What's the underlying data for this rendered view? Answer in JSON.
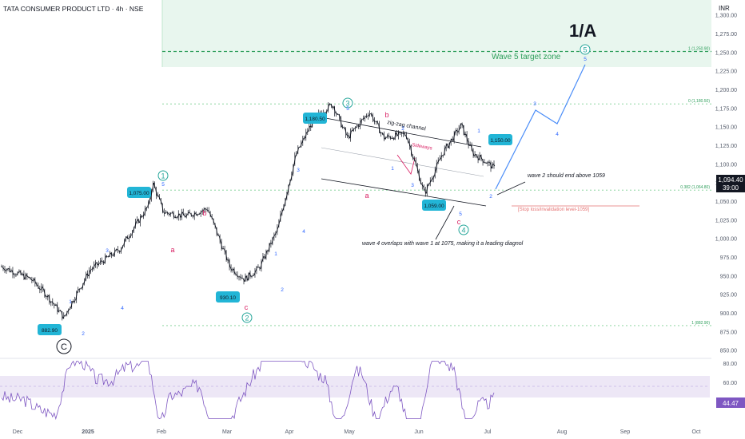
{
  "header": {
    "symbol": "TATA CONSUMER PRODUCT LTD · 4h · NSE",
    "big_label": "1/A",
    "currency": "INR"
  },
  "colors": {
    "candle": "#131722",
    "price_axis_text": "#555c6b",
    "target_zone_fill": "#e8f6ee",
    "target_line": "#2e9e5b",
    "fib_line": "#7ccf93",
    "elliott_teal": "#26a69a",
    "wave_blue": "#2962ff",
    "wave_red": "#d81b60",
    "label_box": "#22b5d6",
    "projection": "#4a8df8",
    "rsi_line": "#7e57c2",
    "rsi_band": "#ede7f6",
    "current_price_bg": "#131722"
  },
  "chart_data": {
    "type": "candlestick",
    "price_axis": {
      "ticks": [
        "1,300.00",
        "1,275.00",
        "1,250.00",
        "1,225.00",
        "1,200.00",
        "1,175.00",
        "1,150.00",
        "1,125.00",
        "1,100.00",
        "1,075.00",
        "1,050.00",
        "1,025.00",
        "1,000.00",
        "975.00",
        "950.00",
        "925.00",
        "900.00",
        "875.00",
        "850.00"
      ],
      "range": [
        840,
        1320
      ]
    },
    "time_axis": {
      "labels": [
        "Dec",
        "2025",
        "Feb",
        "Mar",
        "Apr",
        "May",
        "Jun",
        "Jul",
        "Aug",
        "Sep",
        "Oct"
      ]
    },
    "current_price": {
      "value": "1,094.40",
      "countdown": "39:00"
    },
    "price_path_t": [
      0.0,
      0.04,
      0.06,
      0.085,
      0.09,
      0.12,
      0.16,
      0.2,
      0.205,
      0.22,
      0.25,
      0.28,
      0.31,
      0.33,
      0.35,
      0.375,
      0.4,
      0.42,
      0.435,
      0.45,
      0.47,
      0.5,
      0.52,
      0.55,
      0.575,
      0.6,
      0.625,
      0.64,
      0.66,
      0.67
    ],
    "price_path_v": [
      962,
      945,
      925,
      893,
      905,
      958,
      985,
      1045,
      1075,
      1035,
      1030,
      1040,
      962,
      945,
      960,
      1012,
      1112,
      1152,
      1170,
      1180,
      1135,
      1170,
      1135,
      1140,
      1060,
      1115,
      1152,
      1115,
      1102,
      1094
    ],
    "labeled_prices": [
      {
        "text": "882.90",
        "value": 882.9
      },
      {
        "text": "1,075.00",
        "value": 1075
      },
      {
        "text": "930.10",
        "value": 930.1
      },
      {
        "text": "1,180.50",
        "value": 1180.5
      },
      {
        "text": "1,059.00",
        "value": 1059
      },
      {
        "text": "1,150.00",
        "value": 1150
      }
    ],
    "fib_levels": [
      {
        "text": "1 (1,250.90)",
        "value": 1250.9
      },
      {
        "text": "0 (1,180.50)",
        "value": 1180.5
      },
      {
        "text": "0.382 (1,064.80)",
        "value": 1064.8
      },
      {
        "text": "1 (882.90)",
        "value": 882.9
      }
    ],
    "rsi": {
      "ticks": [
        "80.00",
        "60.00",
        "40.00"
      ],
      "current": "44.47",
      "range": [
        20,
        85
      ]
    }
  },
  "annotations": {
    "target_zone": "Wave 5 target zone",
    "zigzag_channel": "zig-zag channel",
    "sideways_label": "Sideways",
    "wave2_note": "wave 2 should end above 1059",
    "stop_loss": "[Stop loss/invalidation level-1059]",
    "wave4_note": "wave 4 overlaps with wave 1 at 1075, making it a leading diagnol",
    "circle_major": [
      "C",
      "1",
      "2",
      "3",
      "4",
      "5"
    ],
    "blue_minor": [
      "1",
      "2",
      "3",
      "4",
      "5"
    ],
    "red_abc": [
      "a",
      "b",
      "c"
    ]
  }
}
